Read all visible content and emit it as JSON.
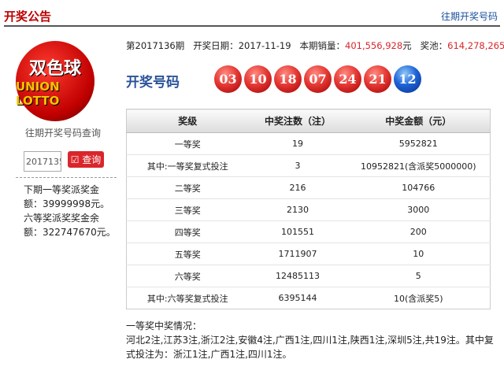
{
  "header": {
    "title": "开奖公告",
    "history_link": "往期开奖号码"
  },
  "logo": {
    "text_cn": "双色球",
    "text_en": "UNION LOTTO"
  },
  "sidebar": {
    "query_label": "往期开奖号码查询",
    "issue_value": "2017135",
    "query_button": "查询",
    "notes": [
      "下期一等奖派奖金额：39999998元。",
      "六等奖派奖奖金余额：322747670元。"
    ]
  },
  "info": {
    "issue": "第2017136期",
    "date_label": "开奖日期：",
    "date": "2017-11-19",
    "sales_label": "本期销量：",
    "sales": "401,556,928",
    "pool_label": "奖池：",
    "pool": "614,278,265",
    "unit": "元"
  },
  "numbers": {
    "label": "开奖号码",
    "red": [
      "03",
      "10",
      "18",
      "07",
      "24",
      "21"
    ],
    "blue": "12",
    "red_color": "#e53935",
    "blue_color": "#1e63d6"
  },
  "table": {
    "headers": [
      "奖级",
      "中奖注数（注）",
      "中奖金额（元）"
    ],
    "rows": [
      [
        "一等奖",
        "19",
        "5952821"
      ],
      [
        "其中:一等奖复式投注",
        "3",
        "10952821(含派奖5000000)"
      ],
      [
        "二等奖",
        "216",
        "104766"
      ],
      [
        "三等奖",
        "2130",
        "3000"
      ],
      [
        "四等奖",
        "101551",
        "200"
      ],
      [
        "五等奖",
        "1711907",
        "10"
      ],
      [
        "六等奖",
        "12485113",
        "5"
      ],
      [
        "其中:六等奖复式投注",
        "6395144",
        "10(含派奖5)"
      ]
    ]
  },
  "summary": {
    "title": "一等奖中奖情况：",
    "text": "河北2注,江苏3注,浙江2注,安徽4注,广西1注,四川1注,陕西1注,深圳5注,共19注。其中复式投注为：浙江1注,广西1注,四川1注。"
  }
}
